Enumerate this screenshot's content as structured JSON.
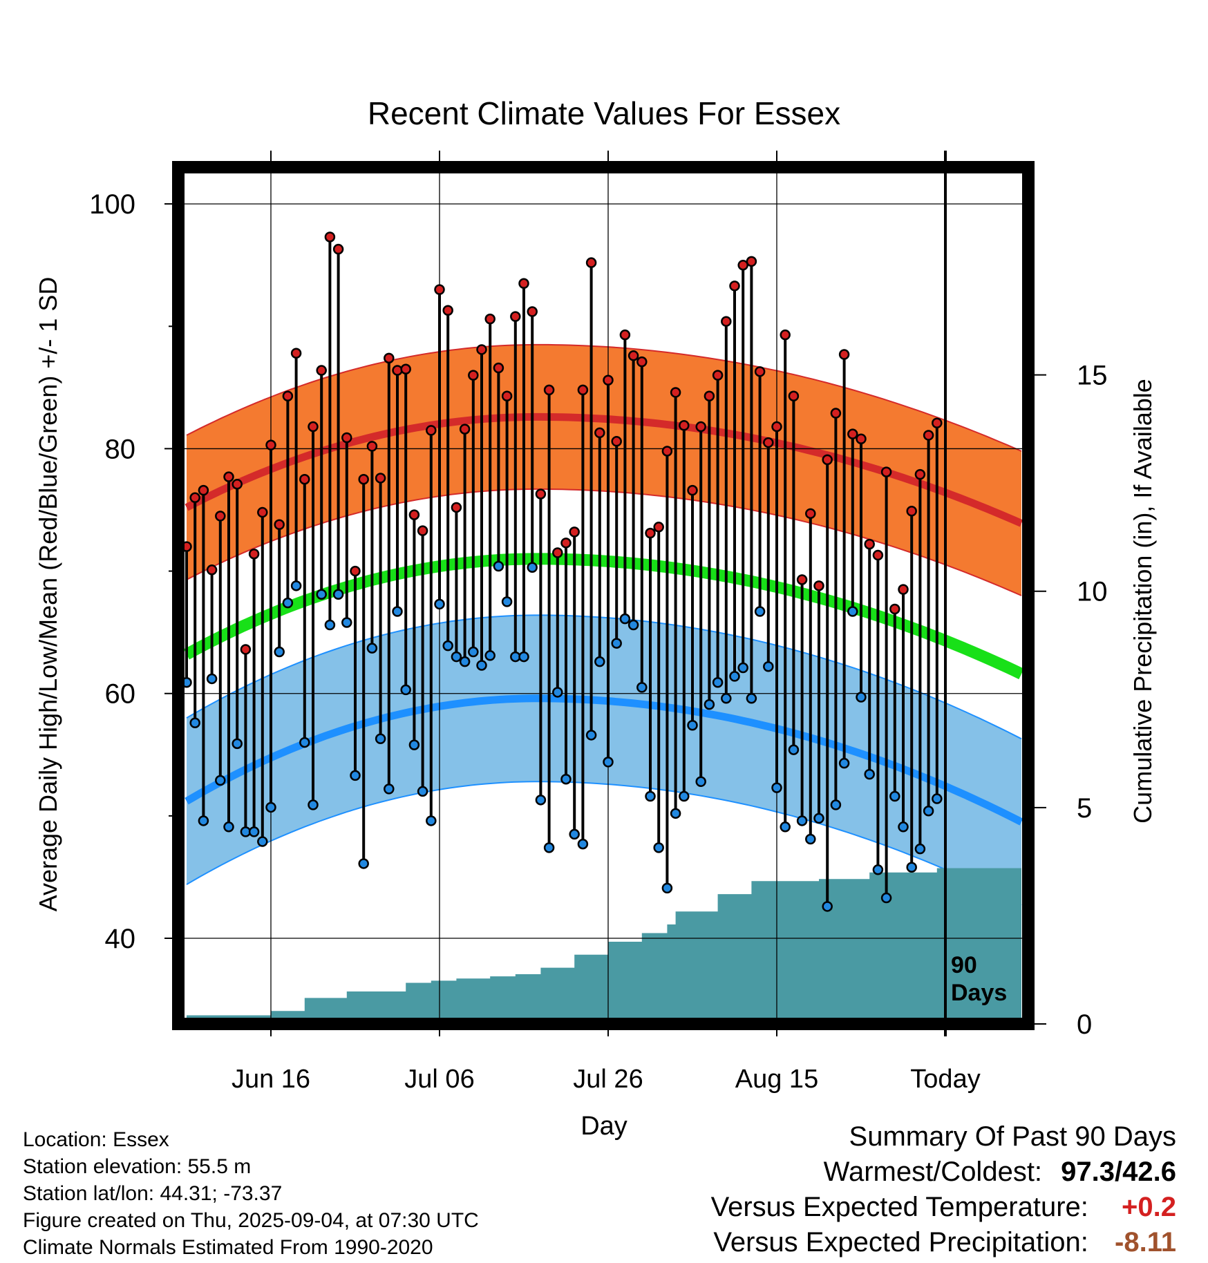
{
  "chart_data": {
    "type": "line",
    "title": "Recent Climate Values For Essex",
    "xlabel": "Day",
    "ylabel_left": "Average Daily High/Low/Mean (Red/Blue/Green) +/- 1 SD",
    "ylabel_right": "Cumulative Precipitation (in), If Available",
    "ylim_left": [
      33,
      103
    ],
    "ylim_right": [
      0,
      19.8
    ],
    "x_ticks": [
      "Jun 16",
      "Jul 06",
      "Jul 26",
      "Aug 15",
      "Today"
    ],
    "y_ticks_left": [
      40,
      60,
      80,
      100
    ],
    "y_ticks_right": [
      0,
      5,
      10,
      15
    ],
    "period_label": "90 Days",
    "grid": true,
    "daily_high": [
      72.0,
      76.0,
      76.6,
      70.1,
      74.5,
      77.7,
      77.1,
      63.6,
      71.4,
      74.8,
      80.3,
      73.8,
      84.3,
      87.8,
      77.5,
      81.8,
      86.4,
      97.3,
      96.3,
      80.9,
      70.0,
      77.5,
      80.2,
      77.6,
      87.4,
      86.4,
      86.5,
      74.6,
      73.3,
      81.5,
      93.0,
      91.3,
      75.2,
      81.6,
      86.0,
      88.1,
      90.6,
      86.6,
      84.3,
      90.8,
      93.5,
      91.2,
      76.3,
      84.8,
      71.5,
      72.3,
      73.2,
      84.8,
      95.2,
      81.3,
      85.6,
      80.6,
      89.3,
      87.6,
      87.1,
      73.1,
      73.6,
      79.8,
      84.6,
      81.9,
      76.6,
      81.8,
      84.3,
      86.0,
      90.4,
      93.3,
      95.0,
      95.3,
      86.3,
      80.5,
      81.8,
      89.3,
      84.3,
      69.3,
      74.7,
      68.8,
      79.1,
      82.9,
      87.7,
      81.2,
      80.8,
      72.2,
      71.3,
      78.1,
      66.9,
      68.5,
      74.9,
      77.9,
      81.1,
      82.1
    ],
    "daily_low": [
      60.9,
      57.6,
      49.6,
      61.2,
      52.9,
      49.1,
      55.9,
      48.7,
      48.7,
      47.9,
      50.7,
      63.4,
      67.4,
      68.8,
      56.0,
      50.9,
      68.1,
      65.6,
      68.1,
      65.8,
      53.3,
      46.1,
      63.7,
      56.3,
      52.2,
      66.7,
      60.3,
      55.8,
      52.0,
      49.6,
      67.3,
      63.9,
      63.0,
      62.6,
      63.4,
      62.3,
      63.1,
      70.4,
      67.5,
      63.0,
      63.0,
      70.3,
      51.3,
      47.4,
      60.1,
      53.0,
      48.5,
      47.7,
      56.6,
      62.6,
      54.4,
      64.1,
      66.1,
      65.6,
      60.5,
      51.6,
      47.4,
      44.1,
      50.2,
      51.6,
      57.4,
      52.8,
      59.1,
      60.9,
      59.6,
      61.4,
      62.1,
      59.6,
      66.7,
      62.2,
      52.3,
      49.1,
      55.4,
      49.6,
      48.1,
      49.8,
      42.6,
      50.9,
      54.3,
      66.7,
      59.7,
      53.4,
      45.6,
      43.3,
      51.6,
      49.1,
      45.8,
      47.3,
      50.4,
      51.4
    ],
    "normal_high": {
      "start": 75.2,
      "peak": 82.6,
      "end": 73.9
    },
    "normal_low": {
      "start": 51.2,
      "peak": 59.6,
      "end": 49.5
    },
    "normal_mean": {
      "start": 63.2,
      "peak": 71.0,
      "end": 61.6
    },
    "sd_high": 5.9,
    "sd_low": 6.8,
    "cumulative_precip": [
      0.2,
      0.2,
      0.2,
      0.2,
      0.2,
      0.2,
      0.2,
      0.2,
      0.2,
      0.2,
      0.3,
      0.3,
      0.3,
      0.3,
      0.6,
      0.6,
      0.6,
      0.6,
      0.6,
      0.75,
      0.75,
      0.75,
      0.75,
      0.75,
      0.75,
      0.75,
      0.95,
      0.95,
      0.95,
      1.0,
      1.0,
      1.0,
      1.05,
      1.05,
      1.05,
      1.05,
      1.1,
      1.1,
      1.1,
      1.15,
      1.15,
      1.15,
      1.3,
      1.3,
      1.3,
      1.3,
      1.6,
      1.6,
      1.6,
      1.6,
      1.9,
      1.9,
      1.9,
      1.9,
      2.1,
      2.1,
      2.1,
      2.3,
      2.6,
      2.6,
      2.6,
      2.6,
      2.6,
      3.0,
      3.0,
      3.0,
      3.0,
      3.3,
      3.3,
      3.3,
      3.3,
      3.3,
      3.3,
      3.3,
      3.3,
      3.35,
      3.35,
      3.35,
      3.35,
      3.35,
      3.35,
      3.5,
      3.5,
      3.5,
      3.5,
      3.5,
      3.5,
      3.5,
      3.5,
      3.6
    ]
  },
  "footer": {
    "location": "Location: Essex",
    "elevation": "Station elevation: 55.5 m",
    "latlon": "Station lat/lon: 44.31; -73.37",
    "created": "Figure created on Thu, 2025-09-04, at 07:30 UTC",
    "normals": "Climate Normals Estimated From 1990-2020"
  },
  "summary": {
    "title": "Summary Of Past 90 Days",
    "warmest_label": "Warmest/Coldest:",
    "warmest_value": "97.3/42.6",
    "temp_label": "Versus Expected Temperature:",
    "temp_value": "+0.2",
    "precip_label": "Versus Expected Precipitation:",
    "precip_value": "-8.11"
  },
  "colors": {
    "high_band": "#f47a30",
    "high_line": "#d42a2a",
    "low_band": "#85c1e8",
    "low_line": "#1e90ff",
    "mean_line": "#18e018",
    "precip": "#4a9aa3",
    "high_marker": "#d42020",
    "low_marker": "#2288e0",
    "temp_diff": "#d42020",
    "precip_diff": "#a0522d"
  }
}
